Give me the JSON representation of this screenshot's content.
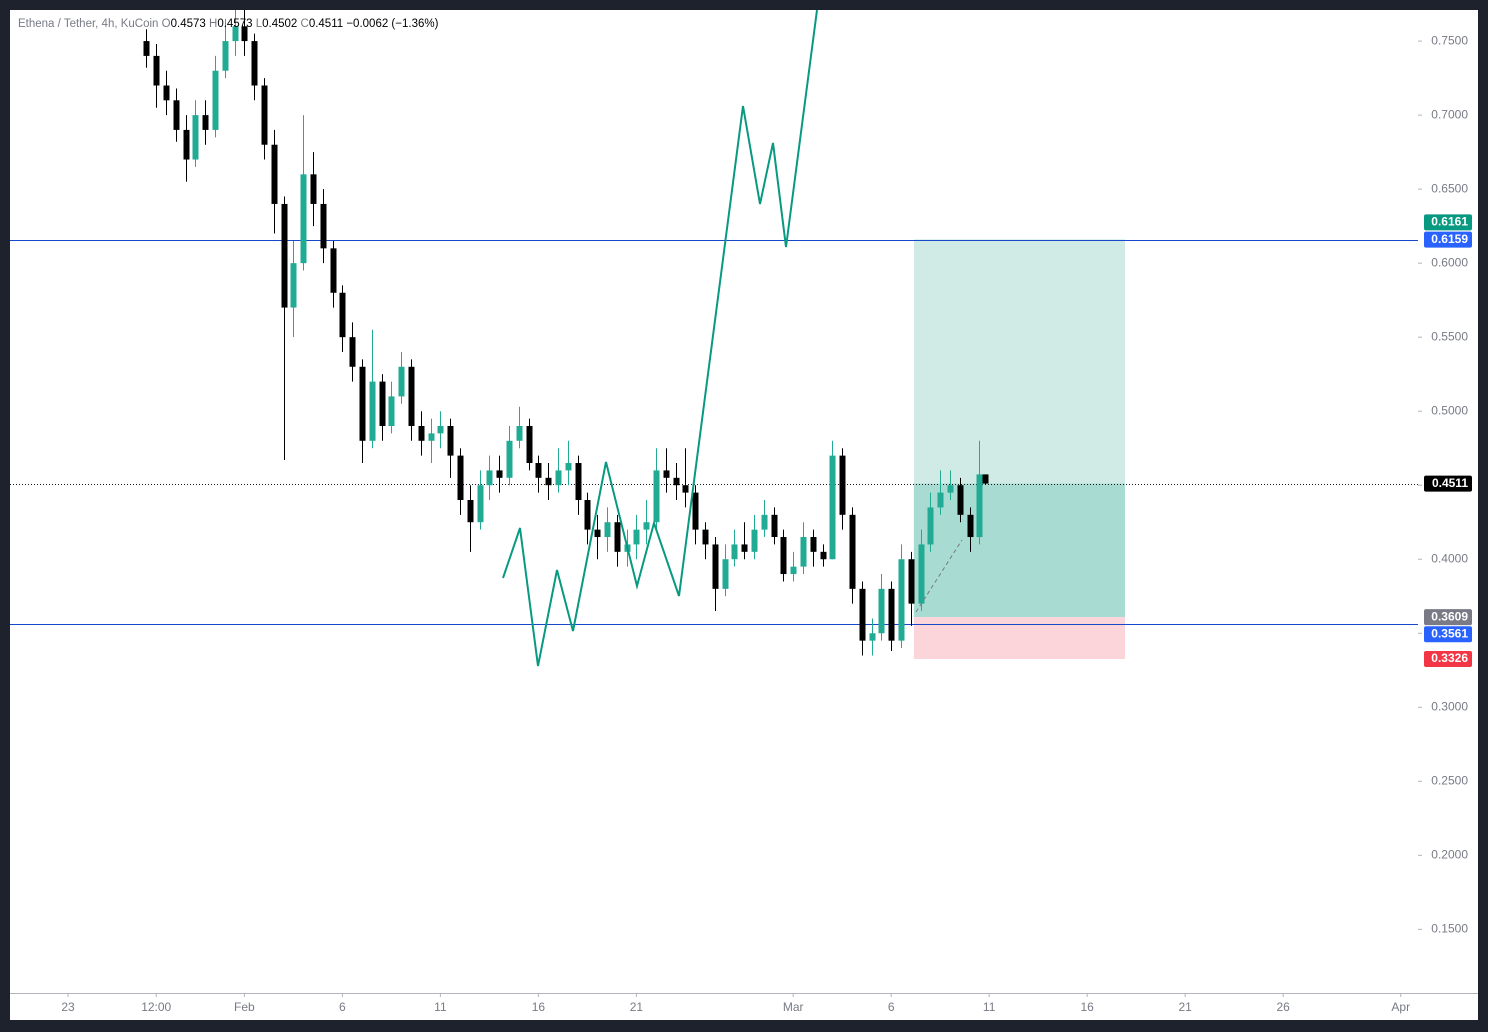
{
  "chart_data": {
    "type": "candlestick",
    "header": {
      "symbol": "Ethena / Tether, 4h, KuCoin",
      "open_label": "O",
      "open": 0.4573,
      "high_label": "H",
      "high": 0.4573,
      "low_label": "L",
      "low": 0.4502,
      "close_label": "C",
      "close": 0.4511,
      "change": "−0.0062 (−1.36%)"
    },
    "up_color": "#22ab94",
    "down_color": "#000000",
    "xlim": [
      -2.96,
      68.88
    ],
    "ylim": [
      0.107,
      0.771
    ],
    "xticks": [
      {
        "value": 0,
        "label": "23"
      },
      {
        "value": 4.5,
        "label": "12:00"
      },
      {
        "value": 9,
        "label": "Feb"
      },
      {
        "value": 14,
        "label": "6"
      },
      {
        "value": 19,
        "label": "11"
      },
      {
        "value": 24,
        "label": "16"
      },
      {
        "value": 29,
        "label": "21"
      },
      {
        "value": 37,
        "label": "Mar"
      },
      {
        "value": 42,
        "label": "6"
      },
      {
        "value": 47,
        "label": "11"
      },
      {
        "value": 52,
        "label": "16"
      },
      {
        "value": 57,
        "label": "21"
      },
      {
        "value": 62,
        "label": "26"
      },
      {
        "value": 68,
        "label": "Apr"
      }
    ],
    "yticks": [
      {
        "value": 0.75,
        "label": "0.7500"
      },
      {
        "value": 0.7,
        "label": "0.7000"
      },
      {
        "value": 0.65,
        "label": "0.6500"
      },
      {
        "value": 0.6,
        "label": "0.6000"
      },
      {
        "value": 0.55,
        "label": "0.5500"
      },
      {
        "value": 0.5,
        "label": "0.5000"
      },
      {
        "value": 0.45,
        "label": "0.4500"
      },
      {
        "value": 0.4,
        "label": "0.4000"
      },
      {
        "value": 0.35,
        "label": "0.3500"
      },
      {
        "value": 0.3,
        "label": "0.3000"
      },
      {
        "value": 0.25,
        "label": "0.2500"
      },
      {
        "value": 0.2,
        "label": "0.2000"
      },
      {
        "value": 0.15,
        "label": "0.1500"
      }
    ],
    "candles": [
      [
        4.0,
        0.75,
        0.758,
        0.732,
        0.74
      ],
      [
        4.5,
        0.74,
        0.748,
        0.705,
        0.72
      ],
      [
        5.0,
        0.72,
        0.73,
        0.7,
        0.71
      ],
      [
        5.5,
        0.71,
        0.718,
        0.682,
        0.69
      ],
      [
        6.0,
        0.69,
        0.7,
        0.655,
        0.67
      ],
      [
        6.5,
        0.67,
        0.71,
        0.665,
        0.7
      ],
      [
        7.0,
        0.7,
        0.71,
        0.68,
        0.69
      ],
      [
        7.5,
        0.69,
        0.74,
        0.685,
        0.73
      ],
      [
        8.0,
        0.73,
        0.765,
        0.725,
        0.75
      ],
      [
        8.5,
        0.75,
        0.775,
        0.74,
        0.76
      ],
      [
        9.0,
        0.76,
        0.775,
        0.74,
        0.75
      ],
      [
        9.5,
        0.75,
        0.755,
        0.71,
        0.72
      ],
      [
        10.0,
        0.72,
        0.725,
        0.67,
        0.68
      ],
      [
        10.5,
        0.68,
        0.69,
        0.62,
        0.64
      ],
      [
        11.0,
        0.64,
        0.645,
        0.467,
        0.57
      ],
      [
        11.5,
        0.57,
        0.615,
        0.55,
        0.6
      ],
      [
        12.0,
        0.6,
        0.7,
        0.595,
        0.66
      ],
      [
        12.5,
        0.66,
        0.675,
        0.625,
        0.64
      ],
      [
        13.0,
        0.64,
        0.65,
        0.6,
        0.61
      ],
      [
        13.5,
        0.61,
        0.615,
        0.57,
        0.58
      ],
      [
        14.0,
        0.58,
        0.585,
        0.54,
        0.55
      ],
      [
        14.5,
        0.55,
        0.56,
        0.52,
        0.53
      ],
      [
        15.0,
        0.53,
        0.535,
        0.465,
        0.48
      ],
      [
        15.5,
        0.48,
        0.555,
        0.475,
        0.52
      ],
      [
        16.0,
        0.52,
        0.525,
        0.48,
        0.49
      ],
      [
        16.5,
        0.49,
        0.52,
        0.485,
        0.51
      ],
      [
        17.0,
        0.51,
        0.54,
        0.505,
        0.53
      ],
      [
        17.5,
        0.53,
        0.535,
        0.48,
        0.49
      ],
      [
        18.0,
        0.49,
        0.5,
        0.47,
        0.48
      ],
      [
        18.5,
        0.48,
        0.495,
        0.465,
        0.485
      ],
      [
        19.0,
        0.485,
        0.5,
        0.475,
        0.49
      ],
      [
        19.5,
        0.49,
        0.495,
        0.455,
        0.47
      ],
      [
        20.0,
        0.47,
        0.475,
        0.43,
        0.44
      ],
      [
        20.5,
        0.44,
        0.45,
        0.405,
        0.425
      ],
      [
        21.0,
        0.425,
        0.46,
        0.42,
        0.45
      ],
      [
        21.5,
        0.45,
        0.47,
        0.44,
        0.46
      ],
      [
        22.0,
        0.46,
        0.47,
        0.445,
        0.455
      ],
      [
        22.5,
        0.455,
        0.49,
        0.45,
        0.48
      ],
      [
        23.0,
        0.48,
        0.503,
        0.475,
        0.49
      ],
      [
        23.5,
        0.49,
        0.495,
        0.46,
        0.465
      ],
      [
        24.0,
        0.465,
        0.47,
        0.445,
        0.455
      ],
      [
        24.5,
        0.455,
        0.465,
        0.44,
        0.45
      ],
      [
        25.0,
        0.45,
        0.475,
        0.445,
        0.46
      ],
      [
        25.5,
        0.46,
        0.48,
        0.45,
        0.465
      ],
      [
        26.0,
        0.465,
        0.47,
        0.43,
        0.44
      ],
      [
        26.5,
        0.44,
        0.445,
        0.41,
        0.42
      ],
      [
        27.0,
        0.42,
        0.43,
        0.4,
        0.415
      ],
      [
        27.5,
        0.415,
        0.435,
        0.405,
        0.425
      ],
      [
        28.0,
        0.425,
        0.43,
        0.395,
        0.405
      ],
      [
        28.5,
        0.405,
        0.42,
        0.395,
        0.41
      ],
      [
        29.0,
        0.41,
        0.43,
        0.4,
        0.42
      ],
      [
        29.5,
        0.42,
        0.44,
        0.41,
        0.425
      ],
      [
        30.0,
        0.425,
        0.475,
        0.42,
        0.46
      ],
      [
        30.5,
        0.46,
        0.475,
        0.445,
        0.455
      ],
      [
        31.0,
        0.455,
        0.465,
        0.44,
        0.45
      ],
      [
        31.5,
        0.45,
        0.475,
        0.435,
        0.445
      ],
      [
        32.0,
        0.445,
        0.45,
        0.41,
        0.42
      ],
      [
        32.5,
        0.42,
        0.425,
        0.4,
        0.41
      ],
      [
        33.0,
        0.41,
        0.415,
        0.365,
        0.38
      ],
      [
        33.5,
        0.38,
        0.41,
        0.375,
        0.4
      ],
      [
        34.0,
        0.4,
        0.42,
        0.395,
        0.41
      ],
      [
        34.5,
        0.41,
        0.425,
        0.4,
        0.405
      ],
      [
        35.0,
        0.405,
        0.43,
        0.4,
        0.42
      ],
      [
        35.5,
        0.42,
        0.44,
        0.415,
        0.43
      ],
      [
        36.0,
        0.43,
        0.435,
        0.41,
        0.415
      ],
      [
        36.5,
        0.415,
        0.42,
        0.385,
        0.39
      ],
      [
        37.0,
        0.39,
        0.405,
        0.385,
        0.395
      ],
      [
        37.5,
        0.395,
        0.425,
        0.39,
        0.415
      ],
      [
        38.0,
        0.415,
        0.42,
        0.395,
        0.405
      ],
      [
        38.5,
        0.405,
        0.41,
        0.395,
        0.4
      ],
      [
        39.0,
        0.4,
        0.48,
        0.4,
        0.47
      ],
      [
        39.5,
        0.47,
        0.475,
        0.42,
        0.43
      ],
      [
        40.0,
        0.43,
        0.435,
        0.37,
        0.38
      ],
      [
        40.5,
        0.38,
        0.385,
        0.335,
        0.345
      ],
      [
        41.0,
        0.345,
        0.36,
        0.335,
        0.35
      ],
      [
        41.5,
        0.35,
        0.39,
        0.345,
        0.38
      ],
      [
        42.0,
        0.38,
        0.385,
        0.338,
        0.345
      ],
      [
        42.5,
        0.345,
        0.41,
        0.34,
        0.4
      ],
      [
        43.0,
        0.4,
        0.405,
        0.355,
        0.37
      ],
      [
        43.5,
        0.37,
        0.42,
        0.365,
        0.41
      ],
      [
        44.0,
        0.41,
        0.445,
        0.405,
        0.435
      ],
      [
        44.5,
        0.435,
        0.46,
        0.43,
        0.445
      ],
      [
        45.0,
        0.445,
        0.46,
        0.44,
        0.45
      ],
      [
        45.5,
        0.45,
        0.455,
        0.425,
        0.43
      ],
      [
        46.0,
        0.43,
        0.435,
        0.405,
        0.415
      ],
      [
        46.5,
        0.415,
        0.48,
        0.41,
        0.4573
      ],
      [
        46.8,
        0.4573,
        0.4573,
        0.4502,
        0.4511
      ]
    ],
    "hlines": [
      0.6159,
      0.3561
    ],
    "hline_color": "#1848cc",
    "last_price": 0.4511,
    "position": {
      "start": 43.16,
      "end": 53.93,
      "target": 0.6161,
      "entry": 0.3609,
      "stop": 0.3326
    },
    "price_labels": [
      {
        "value": 0.6161,
        "color": "#089981"
      },
      {
        "value": 0.6159,
        "color": "#2962ff"
      },
      {
        "value": 0.4511,
        "color": "#000000"
      },
      {
        "value": 0.3609,
        "color": "#787b86"
      },
      {
        "value": 0.3561,
        "color": "#2962ff"
      },
      {
        "value": 0.3326,
        "color": "#f23645"
      }
    ]
  }
}
